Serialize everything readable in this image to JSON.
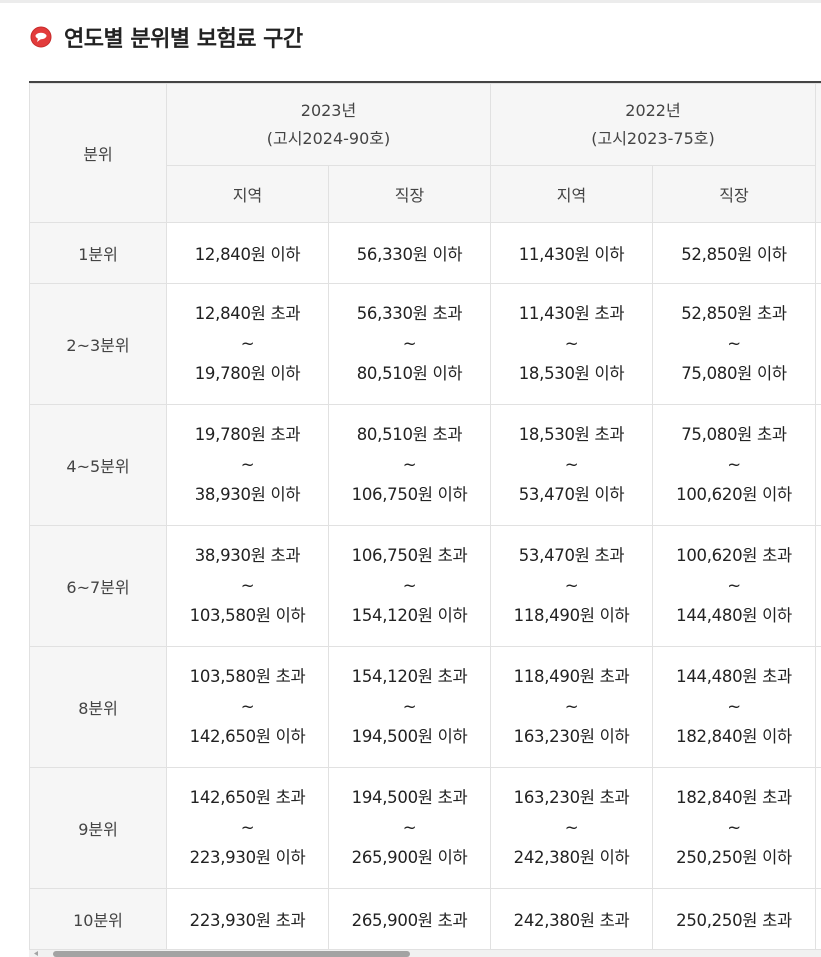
{
  "title": "연도별 분위별 보험료 구간",
  "icon": "red-circle-bullet-icon",
  "colors": {
    "bullet": "#e23b3b",
    "header_bg": "#f6f6f6",
    "border": "#e1e1e1",
    "top_border": "#444444"
  },
  "table": {
    "row_header": "분위",
    "years": [
      {
        "year": "2023년",
        "notice": "(고시2024-90호)"
      },
      {
        "year": "2022년",
        "notice": "(고시2023-75호)"
      }
    ],
    "sub_headers": [
      "지역",
      "직장",
      "지역",
      "직장"
    ],
    "tilde": "~",
    "rows": [
      {
        "label": "1분위",
        "cells": [
          {
            "text": "12,840원 이하"
          },
          {
            "text": "56,330원 이하"
          },
          {
            "text": "11,430원 이하"
          },
          {
            "text": "52,850원 이하"
          }
        ]
      },
      {
        "label": "2~3분위",
        "cells": [
          {
            "from": "12,840원 초과",
            "to": "19,780원 이하"
          },
          {
            "from": "56,330원 초과",
            "to": "80,510원 이하"
          },
          {
            "from": "11,430원 초과",
            "to": "18,530원 이하"
          },
          {
            "from": "52,850원 초과",
            "to": "75,080원 이하"
          }
        ]
      },
      {
        "label": "4~5분위",
        "cells": [
          {
            "from": "19,780원 초과",
            "to": "38,930원 이하"
          },
          {
            "from": "80,510원 초과",
            "to": "106,750원 이하"
          },
          {
            "from": "18,530원 초과",
            "to": "53,470원 이하"
          },
          {
            "from": "75,080원 초과",
            "to": "100,620원 이하"
          }
        ]
      },
      {
        "label": "6~7분위",
        "cells": [
          {
            "from": "38,930원 초과",
            "to": "103,580원 이하"
          },
          {
            "from": "106,750원 초과",
            "to": "154,120원 이하"
          },
          {
            "from": "53,470원 초과",
            "to": "118,490원 이하"
          },
          {
            "from": "100,620원 초과",
            "to": "144,480원 이하"
          }
        ]
      },
      {
        "label": "8분위",
        "cells": [
          {
            "from": "103,580원 초과",
            "to": "142,650원 이하"
          },
          {
            "from": "154,120원 초과",
            "to": "194,500원 이하"
          },
          {
            "from": "118,490원 초과",
            "to": "163,230원 이하"
          },
          {
            "from": "144,480원 초과",
            "to": "182,840원 이하"
          }
        ]
      },
      {
        "label": "9분위",
        "cells": [
          {
            "from": "142,650원 초과",
            "to": "223,930원 이하"
          },
          {
            "from": "194,500원 초과",
            "to": "265,900원 이하"
          },
          {
            "from": "163,230원 초과",
            "to": "242,380원 이하"
          },
          {
            "from": "182,840원 초과",
            "to": "250,250원 이하"
          }
        ]
      },
      {
        "label": "10분위",
        "cells": [
          {
            "text": "223,930원 초과"
          },
          {
            "text": "265,900원 초과"
          },
          {
            "text": "242,380원 초과"
          },
          {
            "text": "250,250원 초과"
          }
        ]
      }
    ]
  }
}
